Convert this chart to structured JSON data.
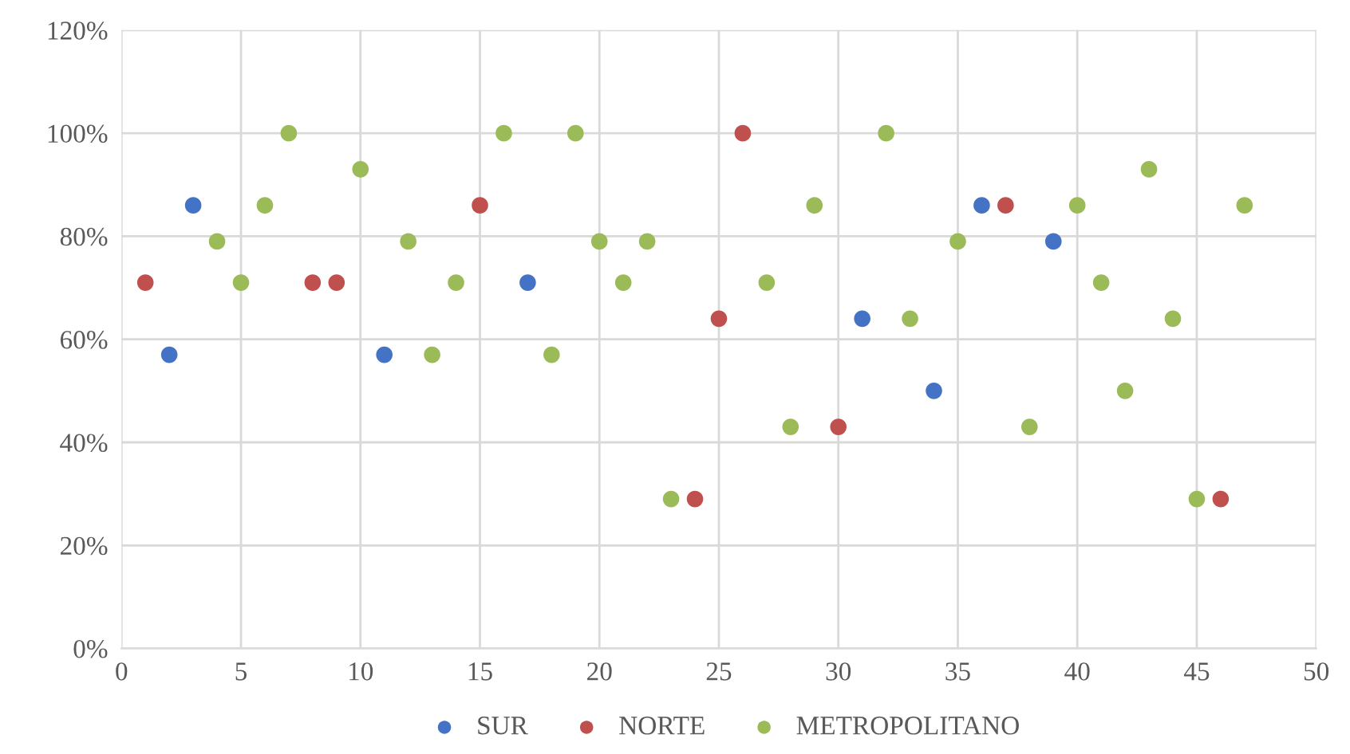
{
  "chart_data": {
    "type": "scatter",
    "xlim": [
      0,
      50
    ],
    "xticks": [
      0,
      5,
      10,
      15,
      20,
      25,
      30,
      35,
      40,
      45,
      50
    ],
    "ylim": [
      0,
      120
    ],
    "yticks": [
      {
        "value": 0,
        "label": "0%"
      },
      {
        "value": 20,
        "label": "20%"
      },
      {
        "value": 40,
        "label": "40%"
      },
      {
        "value": 60,
        "label": "60%"
      },
      {
        "value": 80,
        "label": "80%"
      },
      {
        "value": 100,
        "label": "100%"
      },
      {
        "value": 120,
        "label": "120%"
      }
    ],
    "grid": true,
    "legend": "bottom",
    "marker": "circle",
    "series": [
      {
        "name": "SUR",
        "color": "#4472c4",
        "x": [
          2,
          3,
          11,
          17,
          31,
          34,
          36,
          39
        ],
        "values": [
          57,
          86,
          57,
          71,
          64,
          50,
          86,
          79
        ]
      },
      {
        "name": "NORTE",
        "color": "#c0504d",
        "x": [
          1,
          8,
          9,
          15,
          24,
          25,
          26,
          30,
          37,
          46
        ],
        "values": [
          71,
          71,
          71,
          86,
          29,
          64,
          100,
          43,
          86,
          29
        ]
      },
      {
        "name": "METROPOLITANO",
        "color": "#9bbb59",
        "x": [
          4,
          5,
          6,
          7,
          10,
          12,
          13,
          14,
          16,
          18,
          19,
          20,
          21,
          22,
          23,
          27,
          28,
          29,
          32,
          33,
          35,
          38,
          40,
          41,
          42,
          43,
          44,
          45,
          47
        ],
        "values": [
          79,
          71,
          86,
          100,
          93,
          79,
          57,
          71,
          100,
          57,
          100,
          79,
          71,
          79,
          29,
          71,
          43,
          86,
          100,
          64,
          79,
          43,
          86,
          71,
          50,
          93,
          64,
          29,
          86
        ]
      }
    ]
  }
}
